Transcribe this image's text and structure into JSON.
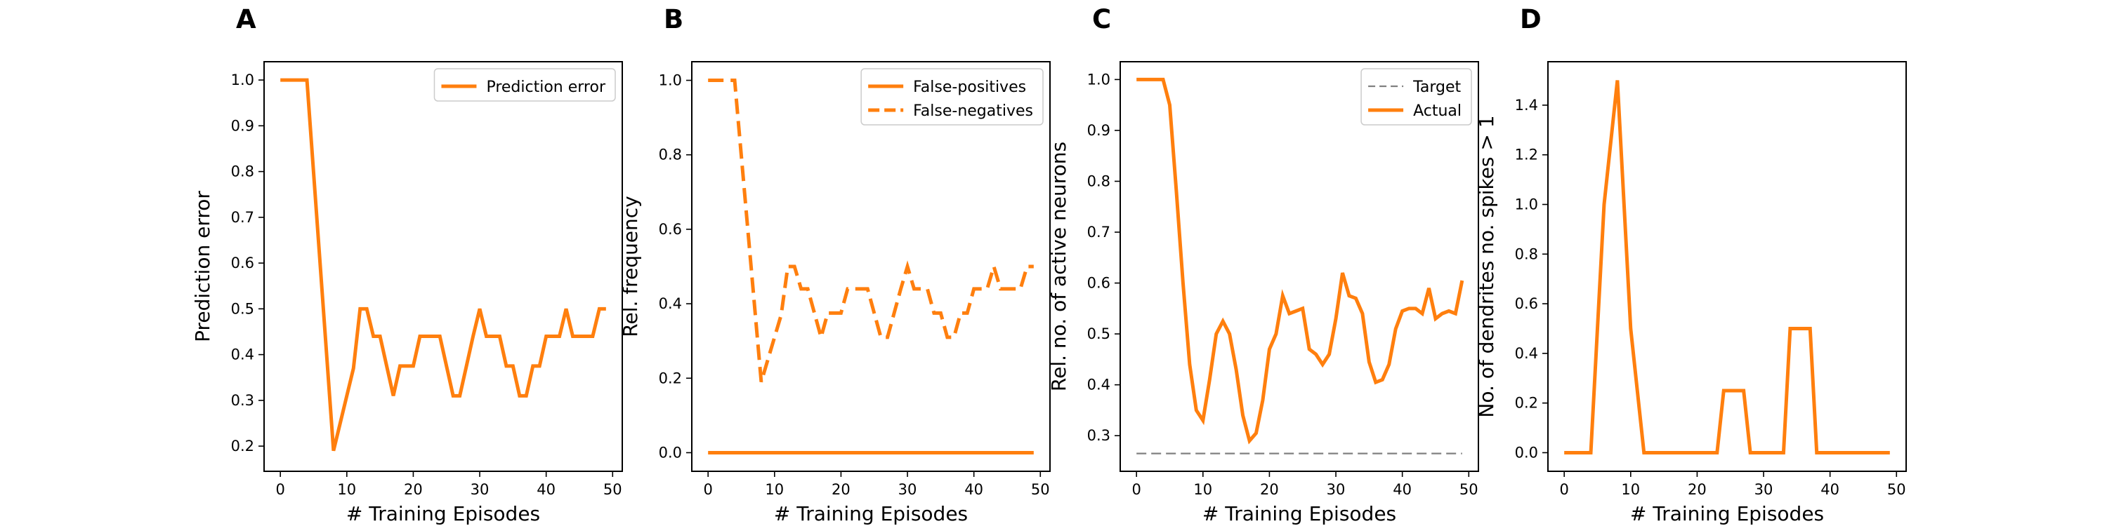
{
  "chart_data": [
    {
      "type": "line",
      "panel_label": "A",
      "xlabel": "# Training Episodes",
      "ylabel": "Prediction error",
      "xlim": [
        -2.45,
        51.45
      ],
      "ylim": [
        0.145,
        1.04
      ],
      "xticks": [
        0,
        10,
        20,
        30,
        40,
        50
      ],
      "yticks": [
        0.2,
        0.3,
        0.4,
        0.5,
        0.6,
        0.7,
        0.8,
        0.9,
        1.0
      ],
      "ytick_labels": [
        "0.2",
        "0.3",
        "0.4",
        "0.5",
        "0.6",
        "0.7",
        "0.8",
        "0.9",
        "1.0"
      ],
      "legend_position": "top-right",
      "series": [
        {
          "name": "Prediction error",
          "style": "solid",
          "x": [
            0,
            1,
            2,
            3,
            4,
            8,
            9,
            10,
            11,
            12,
            13,
            14,
            15,
            16,
            17,
            18,
            19,
            20,
            21,
            22,
            23,
            24,
            25,
            26,
            27,
            28,
            29,
            30,
            31,
            32,
            33,
            34,
            35,
            36,
            37,
            38,
            39,
            40,
            41,
            42,
            43,
            44,
            45,
            46,
            47,
            48,
            49
          ],
          "y": [
            1.0,
            1.0,
            1.0,
            1.0,
            1.0,
            0.19,
            0.25,
            0.31,
            0.37,
            0.5,
            0.5,
            0.44,
            0.44,
            0.375,
            0.31,
            0.375,
            0.375,
            0.375,
            0.44,
            0.44,
            0.44,
            0.44,
            0.375,
            0.31,
            0.31,
            0.375,
            0.44,
            0.5,
            0.44,
            0.44,
            0.44,
            0.375,
            0.375,
            0.31,
            0.31,
            0.375,
            0.375,
            0.44,
            0.44,
            0.44,
            0.5,
            0.44,
            0.44,
            0.44,
            0.44,
            0.5,
            0.5
          ]
        }
      ]
    },
    {
      "type": "line",
      "panel_label": "B",
      "xlabel": "# Training Episodes",
      "ylabel": "Rel. frequency",
      "xlim": [
        -2.45,
        51.45
      ],
      "ylim": [
        -0.05,
        1.05
      ],
      "xticks": [
        0,
        10,
        20,
        30,
        40,
        50
      ],
      "yticks": [
        0.0,
        0.2,
        0.4,
        0.6,
        0.8,
        1.0
      ],
      "ytick_labels": [
        "0.0",
        "0.2",
        "0.4",
        "0.6",
        "0.8",
        "1.0"
      ],
      "legend_position": "top-right",
      "series": [
        {
          "name": "False-positives",
          "style": "solid",
          "x": [
            0,
            49
          ],
          "y": [
            0.0,
            0.0
          ]
        },
        {
          "name": "False-negatives",
          "style": "dashed",
          "x": [
            0,
            1,
            2,
            3,
            4,
            8,
            9,
            10,
            11,
            12,
            13,
            14,
            15,
            16,
            17,
            18,
            19,
            20,
            21,
            22,
            23,
            24,
            25,
            26,
            27,
            28,
            29,
            30,
            31,
            32,
            33,
            34,
            35,
            36,
            37,
            38,
            39,
            40,
            41,
            42,
            43,
            44,
            45,
            46,
            47,
            48,
            49
          ],
          "y": [
            1.0,
            1.0,
            1.0,
            1.0,
            1.0,
            0.19,
            0.25,
            0.31,
            0.37,
            0.5,
            0.5,
            0.44,
            0.44,
            0.375,
            0.31,
            0.375,
            0.375,
            0.375,
            0.44,
            0.44,
            0.44,
            0.44,
            0.375,
            0.31,
            0.31,
            0.375,
            0.44,
            0.5,
            0.44,
            0.44,
            0.44,
            0.375,
            0.375,
            0.31,
            0.31,
            0.375,
            0.375,
            0.44,
            0.44,
            0.44,
            0.5,
            0.44,
            0.44,
            0.44,
            0.44,
            0.5,
            0.5
          ]
        }
      ]
    },
    {
      "type": "line",
      "panel_label": "C",
      "xlabel": "# Training Episodes",
      "ylabel": "Rel. no. of active neurons",
      "xlim": [
        -2.45,
        51.45
      ],
      "ylim": [
        0.23,
        1.035
      ],
      "xticks": [
        0,
        10,
        20,
        30,
        40,
        50
      ],
      "yticks": [
        0.3,
        0.4,
        0.5,
        0.6,
        0.7,
        0.8,
        0.9,
        1.0
      ],
      "ytick_labels": [
        "0.3",
        "0.4",
        "0.5",
        "0.6",
        "0.7",
        "0.8",
        "0.9",
        "1.0"
      ],
      "legend_position": "top-right",
      "series": [
        {
          "name": "Target",
          "style": "dashed-gray",
          "x": [
            0,
            49
          ],
          "y": [
            0.265,
            0.265
          ]
        },
        {
          "name": "Actual",
          "style": "solid",
          "x": [
            0,
            1,
            2,
            3,
            4,
            5,
            6,
            7,
            8,
            9,
            10,
            11,
            12,
            13,
            14,
            15,
            16,
            17,
            18,
            19,
            20,
            21,
            22,
            23,
            24,
            25,
            26,
            27,
            28,
            29,
            30,
            31,
            32,
            33,
            34,
            35,
            36,
            37,
            38,
            39,
            40,
            41,
            42,
            43,
            44,
            45,
            46,
            47,
            48,
            49
          ],
          "y": [
            1.0,
            1.0,
            1.0,
            1.0,
            1.0,
            0.95,
            0.78,
            0.6,
            0.44,
            0.35,
            0.33,
            0.41,
            0.5,
            0.525,
            0.5,
            0.43,
            0.34,
            0.29,
            0.305,
            0.37,
            0.47,
            0.5,
            0.575,
            0.54,
            0.545,
            0.55,
            0.47,
            0.46,
            0.44,
            0.46,
            0.53,
            0.62,
            0.575,
            0.57,
            0.54,
            0.445,
            0.405,
            0.41,
            0.44,
            0.51,
            0.545,
            0.55,
            0.55,
            0.54,
            0.59,
            0.53,
            0.54,
            0.545,
            0.54,
            0.605
          ]
        }
      ]
    },
    {
      "type": "line",
      "panel_label": "D",
      "xlabel": "# Training Episodes",
      "ylabel": "No. of dendrites no. spikes > 1",
      "xlim": [
        -2.45,
        51.45
      ],
      "ylim": [
        -0.075,
        1.575
      ],
      "xticks": [
        0,
        10,
        20,
        30,
        40,
        50
      ],
      "yticks": [
        0.0,
        0.2,
        0.4,
        0.6,
        0.8,
        1.0,
        1.2,
        1.4
      ],
      "ytick_labels": [
        "0.0",
        "0.2",
        "0.4",
        "0.6",
        "0.8",
        "1.0",
        "1.2",
        "1.4"
      ],
      "legend_position": "none",
      "series": [
        {
          "name": "",
          "style": "solid",
          "x": [
            0,
            1,
            2,
            3,
            4,
            5,
            6,
            7,
            8,
            9,
            10,
            11,
            12,
            13,
            14,
            15,
            16,
            17,
            18,
            19,
            20,
            21,
            22,
            23,
            24,
            25,
            26,
            27,
            28,
            29,
            30,
            31,
            32,
            33,
            34,
            35,
            36,
            37,
            38,
            39,
            40,
            41,
            42,
            43,
            44,
            45,
            46,
            47,
            48,
            49
          ],
          "y": [
            0,
            0,
            0,
            0,
            0,
            0.5,
            1.0,
            1.25,
            1.5,
            1.0,
            0.5,
            0.25,
            0,
            0,
            0,
            0,
            0,
            0,
            0,
            0,
            0,
            0,
            0,
            0,
            0.25,
            0.25,
            0.25,
            0.25,
            0,
            0,
            0,
            0,
            0,
            0,
            0.5,
            0.5,
            0.5,
            0.5,
            0,
            0,
            0,
            0,
            0,
            0,
            0,
            0,
            0,
            0,
            0,
            0
          ]
        }
      ]
    }
  ]
}
